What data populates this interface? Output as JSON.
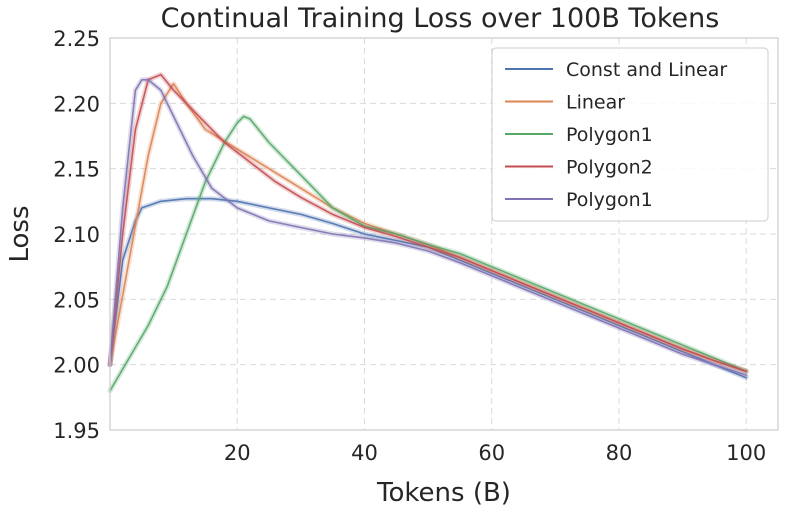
{
  "chart_data": {
    "type": "line",
    "title": "Continual Training Loss over 100B Tokens",
    "xlabel": "Tokens (B)",
    "ylabel": "Loss",
    "xlim": [
      0,
      105
    ],
    "ylim": [
      1.95,
      2.25
    ],
    "grid": true,
    "legend_position": "top-right",
    "x_ticks": [
      20,
      40,
      60,
      80,
      100
    ],
    "x_tick_labels": [
      "20",
      "40",
      "60",
      "80",
      "100"
    ],
    "y_ticks": [
      1.95,
      2.0,
      2.05,
      2.1,
      2.15,
      2.2,
      2.25
    ],
    "y_tick_labels": [
      "1.95",
      "2.00",
      "2.05",
      "2.10",
      "2.15",
      "2.20",
      "2.25"
    ],
    "series": [
      {
        "name": "Const and Linear",
        "color": "#4c72b0",
        "x": [
          0,
          2,
          4,
          5,
          8,
          12,
          16,
          20,
          25,
          30,
          35,
          40,
          45,
          50,
          55,
          60,
          65,
          70,
          75,
          80,
          85,
          90,
          95,
          100
        ],
        "values": [
          2.0,
          2.08,
          2.11,
          2.12,
          2.125,
          2.127,
          2.127,
          2.125,
          2.12,
          2.115,
          2.108,
          2.1,
          2.095,
          2.09,
          2.08,
          2.07,
          2.06,
          2.05,
          2.04,
          2.03,
          2.02,
          2.01,
          2.0,
          1.99
        ]
      },
      {
        "name": "Linear",
        "color": "#dd8452",
        "x": [
          0,
          3,
          6,
          8,
          10,
          12,
          15,
          20,
          25,
          30,
          35,
          40,
          45,
          50,
          55,
          60,
          65,
          70,
          75,
          80,
          85,
          90,
          95,
          100
        ],
        "values": [
          2.0,
          2.08,
          2.16,
          2.2,
          2.215,
          2.2,
          2.18,
          2.165,
          2.15,
          2.135,
          2.12,
          2.108,
          2.1,
          2.092,
          2.082,
          2.072,
          2.062,
          2.052,
          2.042,
          2.032,
          2.022,
          2.012,
          2.003,
          1.995
        ]
      },
      {
        "name": "Polygon1",
        "color": "#55a868",
        "x": [
          0,
          3,
          6,
          9,
          12,
          15,
          18,
          20,
          21,
          22,
          25,
          30,
          35,
          40,
          45,
          50,
          55,
          60,
          65,
          70,
          75,
          80,
          85,
          90,
          95,
          100
        ],
        "values": [
          1.98,
          2.005,
          2.03,
          2.06,
          2.1,
          2.14,
          2.17,
          2.185,
          2.19,
          2.188,
          2.17,
          2.145,
          2.12,
          2.106,
          2.1,
          2.092,
          2.085,
          2.075,
          2.065,
          2.055,
          2.045,
          2.035,
          2.025,
          2.015,
          2.005,
          1.995
        ]
      },
      {
        "name": "Polygon2",
        "color": "#c44e52",
        "x": [
          0,
          2,
          4,
          6,
          8,
          10,
          14,
          18,
          22,
          26,
          30,
          35,
          40,
          45,
          50,
          55,
          60,
          65,
          70,
          75,
          80,
          85,
          90,
          95,
          100
        ],
        "values": [
          2.0,
          2.1,
          2.18,
          2.218,
          2.222,
          2.21,
          2.19,
          2.17,
          2.155,
          2.14,
          2.128,
          2.115,
          2.105,
          2.098,
          2.09,
          2.082,
          2.072,
          2.062,
          2.052,
          2.042,
          2.032,
          2.022,
          2.012,
          2.003,
          1.995
        ]
      },
      {
        "name": "Polygon1",
        "color": "#8172b3",
        "x": [
          0,
          2,
          4,
          5,
          6,
          8,
          10,
          13,
          16,
          20,
          25,
          30,
          35,
          40,
          45,
          50,
          55,
          60,
          65,
          70,
          75,
          80,
          85,
          90,
          95,
          100
        ],
        "values": [
          2.0,
          2.12,
          2.21,
          2.218,
          2.218,
          2.21,
          2.19,
          2.16,
          2.135,
          2.12,
          2.11,
          2.105,
          2.1,
          2.097,
          2.093,
          2.087,
          2.078,
          2.068,
          2.058,
          2.048,
          2.038,
          2.028,
          2.018,
          2.008,
          2.0,
          1.992
        ]
      }
    ]
  }
}
